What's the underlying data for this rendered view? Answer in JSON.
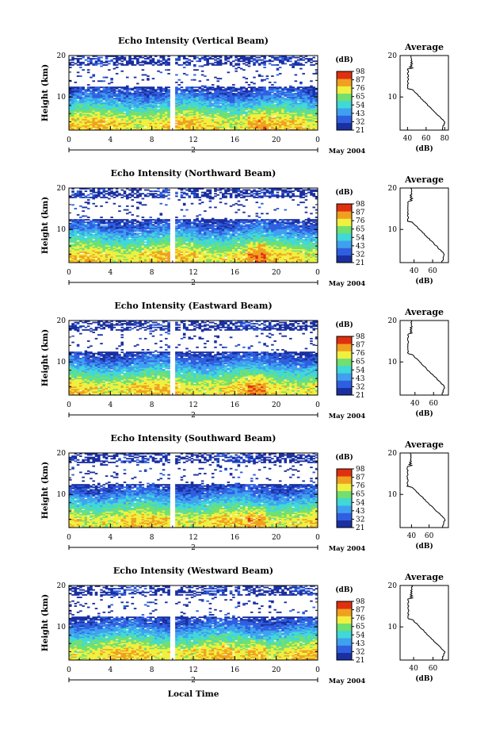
{
  "chart_data": {
    "type": "heatmap",
    "panels": [
      {
        "title": "Echo Intensity (Vertical Beam)",
        "profile_min": 40,
        "profile_max": 80
      },
      {
        "title": "Echo Intensity (Northward Beam)",
        "profile_min": 33,
        "profile_max": 73
      },
      {
        "title": "Echo Intensity (Eastward Beam)",
        "profile_min": 32,
        "profile_max": 72
      },
      {
        "title": "Echo Intensity (Southward Beam)",
        "profile_min": 35,
        "profile_max": 78
      },
      {
        "title": "Echo Intensity (Westward Beam)",
        "profile_min": 34,
        "profile_max": 72
      }
    ],
    "ylabel": "Height (km)",
    "ylim": [
      2,
      20
    ],
    "y_ticks": [
      "20",
      "10"
    ],
    "x_ticks": [
      "0",
      "4",
      "8",
      "12",
      "16",
      "20",
      "0"
    ],
    "xlim_hours": [
      0,
      24
    ],
    "date_tick": "2",
    "date_label": "May 2004",
    "xlabel": "Local Time",
    "colorbar": {
      "unit": "(dB)",
      "tick_sets": [
        [
          "98",
          "87",
          "76",
          "65",
          "54",
          "43",
          "32",
          "21"
        ],
        [
          "98",
          "87",
          "76",
          "65",
          "54",
          "43",
          "32",
          "21"
        ],
        [
          "98",
          "87",
          "76",
          "65",
          "54",
          "43",
          "32",
          "21"
        ],
        [
          "98",
          "87",
          "76",
          "65",
          "54",
          "43",
          "32",
          "21"
        ],
        [
          "98",
          "87",
          "76",
          "65",
          "54",
          "43",
          "32",
          "21"
        ]
      ],
      "colors": [
        "#1a2fa0",
        "#2f5fe0",
        "#3fa0f0",
        "#40d8d8",
        "#70e070",
        "#f0f040",
        "#f0a020",
        "#e03010"
      ]
    },
    "profile": {
      "title": "Average",
      "xlabel": "(dB)",
      "y_ticks": [
        "20",
        "10"
      ],
      "x_tick_sets": [
        [
          "40",
          "60",
          "80"
        ],
        [
          "40",
          "60"
        ],
        [
          "40",
          "60"
        ],
        [
          "40",
          "60"
        ],
        [
          "40",
          "60"
        ]
      ]
    }
  }
}
